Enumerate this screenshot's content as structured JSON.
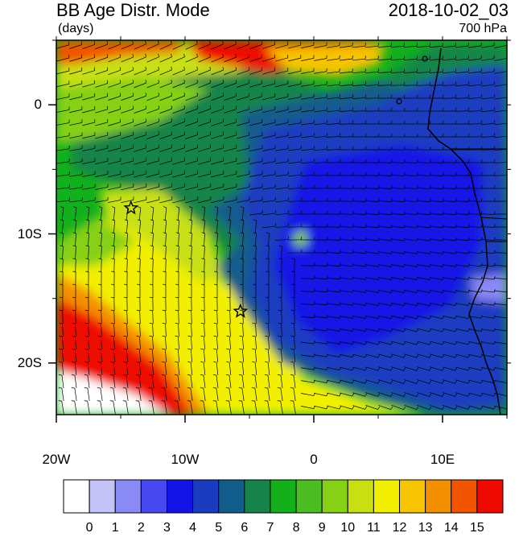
{
  "header": {
    "title": "BB Age Distr. Mode",
    "units": "(days)",
    "datetime": "2018-10-02_03",
    "level": "700 hPa"
  },
  "axes": {
    "x_ticks": [
      {
        "lon": -20,
        "label": "20W"
      },
      {
        "lon": -10,
        "label": "10W"
      },
      {
        "lon": 0,
        "label": "0"
      },
      {
        "lon": 10,
        "label": "10E"
      }
    ],
    "y_ticks": [
      {
        "lat": 0,
        "label": "0"
      },
      {
        "lat": -10,
        "label": "10S"
      },
      {
        "lat": -20,
        "label": "20S"
      }
    ],
    "lon_range": [
      -20,
      15
    ],
    "lat_range": [
      -24,
      5
    ]
  },
  "colorbar": {
    "labels": [
      "0",
      "1",
      "2",
      "3",
      "4",
      "5",
      "6",
      "7",
      "8",
      "9",
      "10",
      "11",
      "12",
      "13",
      "14",
      "15"
    ],
    "colors": [
      "#ffffff",
      "#c4c4f8",
      "#8a8af4",
      "#4848f0",
      "#1414e6",
      "#1a3cc0",
      "#125c8c",
      "#16844a",
      "#14b01c",
      "#4cbe24",
      "#86d016",
      "#c8e012",
      "#f2f000",
      "#f6c400",
      "#f49000",
      "#f05400",
      "#ee0a00"
    ]
  },
  "markers": [
    {
      "lon": -14.2,
      "lat": -8.0,
      "symbol": "star"
    },
    {
      "lon": -5.7,
      "lat": -16.0,
      "symbol": "star"
    }
  ],
  "chart_data": {
    "type": "heatmap",
    "title": "BB Age Distr. Mode",
    "units": "(days)",
    "xlabel": "",
    "ylabel": "",
    "xlim": [
      -20,
      15
    ],
    "ylim": [
      -24,
      5
    ],
    "colorbar_range": [
      0,
      15
    ]
  }
}
